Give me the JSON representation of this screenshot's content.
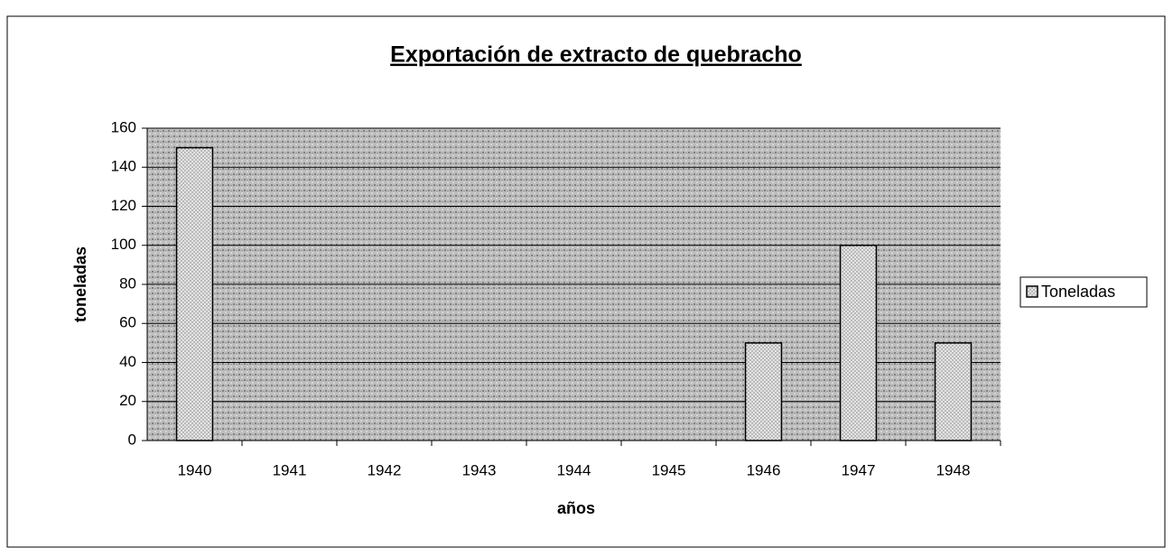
{
  "chart_data": {
    "type": "bar",
    "title": "Exportación de extracto de quebracho",
    "x_label": "años",
    "y_label": "toneladas",
    "categories": [
      "1940",
      "1941",
      "1942",
      "1943",
      "1944",
      "1945",
      "1946",
      "1947",
      "1948"
    ],
    "series": [
      {
        "name": "Toneladas",
        "color": "#d9d9d9",
        "values": [
          150,
          0,
          0,
          0,
          0,
          0,
          50,
          100,
          50
        ]
      }
    ],
    "ylim": [
      0,
      160
    ],
    "yticks": [
      0,
      20,
      40,
      60,
      80,
      100,
      120,
      140,
      160
    ],
    "grid": true,
    "legend": "right"
  }
}
